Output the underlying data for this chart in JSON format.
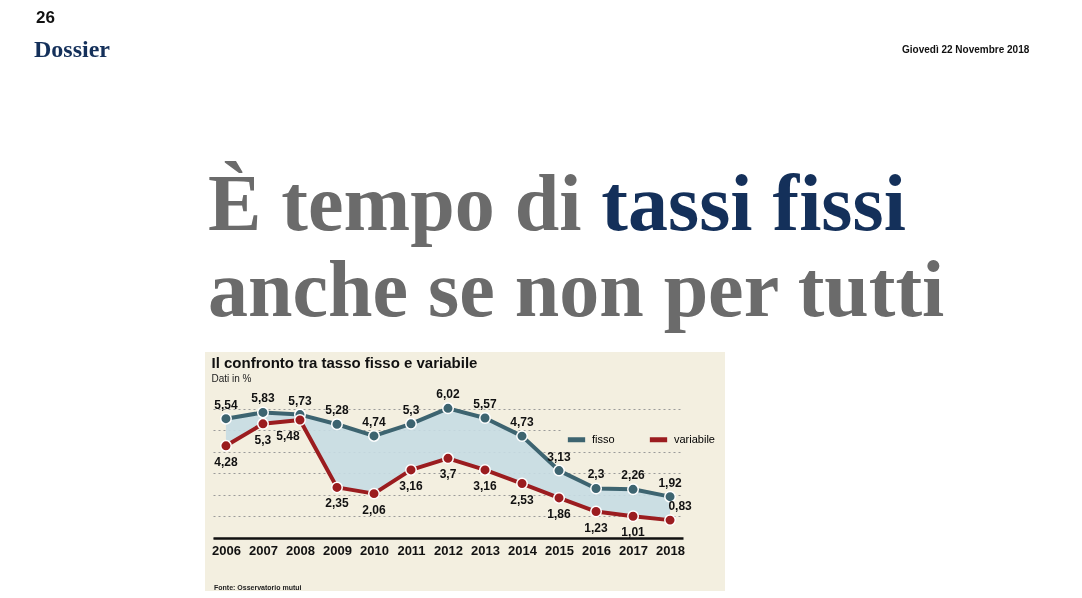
{
  "chart_data": {
    "type": "line",
    "title": "Il confronto tra tasso fisso e variabile",
    "subtitle": "Dati in %",
    "annotations": [
      "26",
      "Dossier",
      "Giovedì 22 Novembre 2018",
      "È tempo di tassi fissi anche se non per tutti",
      "Fonte: Osservatorio mutui"
    ],
    "categories": [
      "2006",
      "2007",
      "2008",
      "2009",
      "2010",
      "2011",
      "2012",
      "2013",
      "2014",
      "2015",
      "2016",
      "2017",
      "2018"
    ],
    "series": [
      {
        "name": "fisso",
        "color": "#3d6470",
        "values": [
          5.54,
          5.83,
          5.73,
          5.28,
          4.74,
          5.3,
          6.02,
          5.57,
          4.73,
          3.13,
          2.3,
          2.26,
          1.92
        ],
        "value_labels": [
          "5,54",
          "5,83",
          "5,73",
          "5,28",
          "4,74",
          "5,3",
          "6,02",
          "5,57",
          "4,73",
          "3,13",
          "2,3",
          "2,26",
          "1,92"
        ],
        "lower": [
          4.28,
          5.3,
          5.48,
          2.35,
          2.06,
          3.16,
          3.7,
          3.16,
          2.53,
          1.86,
          1.23,
          1.01,
          0.83
        ],
        "upper": [
          5.54,
          5.83,
          5.73,
          5.28,
          4.74,
          5.3,
          6.02,
          5.57,
          4.73,
          3.13,
          2.3,
          2.26,
          1.92
        ]
      },
      {
        "name": "variabile",
        "color": "#9b1c1f",
        "values": [
          4.28,
          5.3,
          5.48,
          2.35,
          2.06,
          3.16,
          3.7,
          3.16,
          2.53,
          1.86,
          1.23,
          1.01,
          0.83
        ],
        "value_labels": [
          "4,28",
          "5,3",
          "5,48",
          "2,35",
          "2,06",
          "3,16",
          "3,7",
          "3,16",
          "2,53",
          "1,86",
          "1,23",
          "1,01",
          "0,83"
        ]
      }
    ],
    "tick_labels": "x",
    "grid": "y",
    "legend": "top right",
    "marker": "circle",
    "line_style": "solid"
  }
}
